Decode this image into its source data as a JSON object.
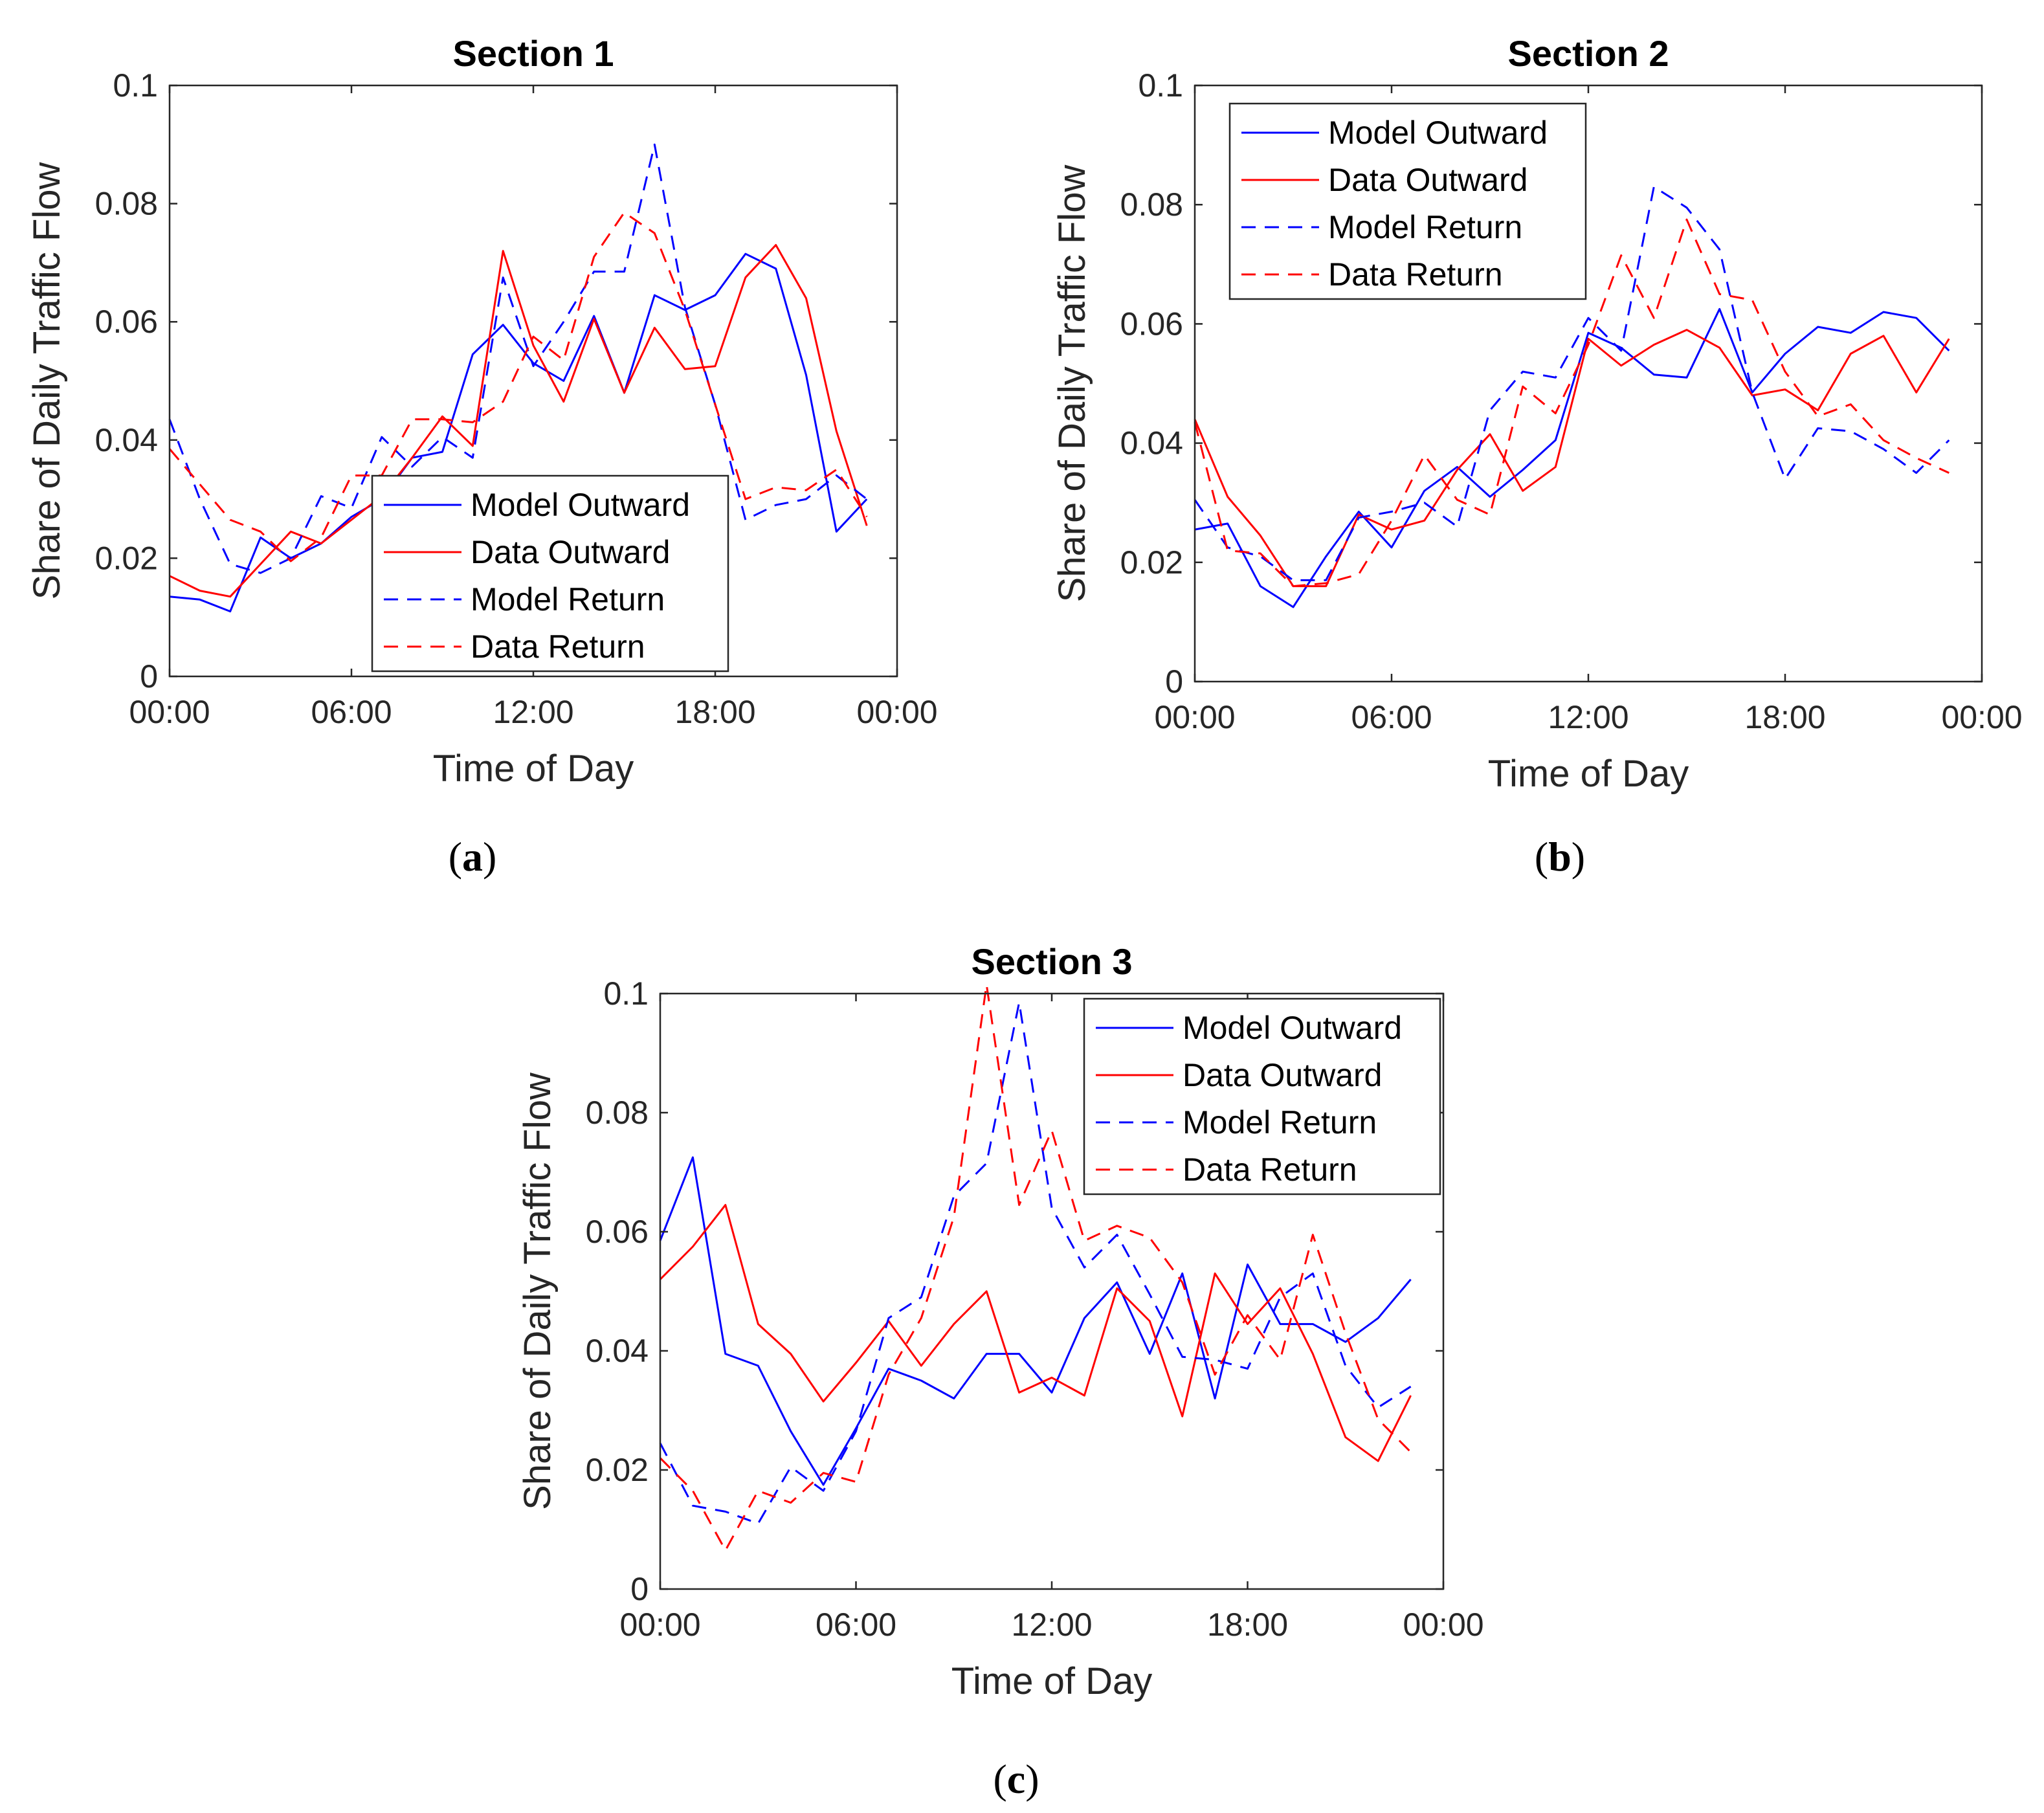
{
  "colors": {
    "model": "#0000ff",
    "data": "#ff0000",
    "axis": "#262626",
    "legend_border": "#262626"
  },
  "series_legend": [
    "Model Outward",
    "Data Outward",
    "Model Return",
    "Data Return"
  ],
  "chart_data": [
    {
      "type": "line",
      "title": "Section 1",
      "xlabel": "Time of Day",
      "ylabel": "Share of Daily Traffic Flow",
      "xlim": [
        0,
        24
      ],
      "ylim": [
        0,
        0.1
      ],
      "xticks": [
        0,
        6,
        12,
        18,
        24
      ],
      "xtick_labels": [
        "00:00",
        "06:00",
        "12:00",
        "18:00",
        "00:00"
      ],
      "yticks": [
        0,
        0.02,
        0.04,
        0.06,
        0.08,
        0.1
      ],
      "ytick_labels": [
        "0",
        "0.02",
        "0.04",
        "0.06",
        "0.08",
        "0.1"
      ],
      "legend_location": "bottom-center",
      "caption": "a",
      "x": [
        0,
        1,
        2,
        3,
        4,
        5,
        6,
        7,
        8,
        9,
        10,
        11,
        12,
        13,
        14,
        15,
        16,
        17,
        18,
        19,
        20,
        21,
        22,
        23
      ],
      "series": [
        {
          "name": "Model Outward",
          "style": "solid",
          "color": "model",
          "values": [
            0.0135,
            0.013,
            0.011,
            0.0235,
            0.02,
            0.0225,
            0.027,
            0.03,
            0.037,
            0.038,
            0.0545,
            0.0595,
            0.053,
            0.05,
            0.061,
            0.048,
            0.0645,
            0.062,
            0.0645,
            0.0715,
            0.069,
            0.051,
            0.0245,
            0.03
          ]
        },
        {
          "name": "Data Outward",
          "style": "solid",
          "color": "data",
          "values": [
            0.017,
            0.0145,
            0.0135,
            0.019,
            0.0245,
            0.0225,
            0.0265,
            0.0305,
            0.037,
            0.044,
            0.039,
            0.072,
            0.056,
            0.0465,
            0.0605,
            0.048,
            0.059,
            0.052,
            0.0525,
            0.0675,
            0.073,
            0.064,
            0.0415,
            0.0255
          ]
        },
        {
          "name": "Model Return",
          "style": "dashed",
          "color": "model",
          "values": [
            0.0435,
            0.03,
            0.019,
            0.0175,
            0.02,
            0.0305,
            0.0285,
            0.0405,
            0.0355,
            0.0405,
            0.037,
            0.0675,
            0.0525,
            0.06,
            0.0685,
            0.0685,
            0.09,
            0.0625,
            0.046,
            0.0265,
            0.029,
            0.03,
            0.034,
            0.03
          ]
        },
        {
          "name": "Data Return",
          "style": "dashed",
          "color": "data",
          "values": [
            0.0385,
            0.0325,
            0.0265,
            0.0245,
            0.0195,
            0.0235,
            0.034,
            0.034,
            0.0435,
            0.0435,
            0.043,
            0.0465,
            0.0575,
            0.0535,
            0.071,
            0.0785,
            0.075,
            0.062,
            0.046,
            0.03,
            0.032,
            0.0315,
            0.035,
            0.027
          ]
        }
      ]
    },
    {
      "type": "line",
      "title": "Section 2",
      "xlabel": "Time of Day",
      "ylabel": "Share of Daily Traffic Flow",
      "xlim": [
        0,
        24
      ],
      "ylim": [
        0,
        0.1
      ],
      "xticks": [
        0,
        6,
        12,
        18,
        24
      ],
      "xtick_labels": [
        "00:00",
        "06:00",
        "12:00",
        "18:00",
        "00:00"
      ],
      "yticks": [
        0,
        0.02,
        0.04,
        0.06,
        0.08,
        0.1
      ],
      "ytick_labels": [
        "0",
        "0.02",
        "0.04",
        "0.06",
        "0.08",
        "0.1"
      ],
      "legend_location": "top-left",
      "caption": "b",
      "x": [
        0,
        1,
        2,
        3,
        4,
        5,
        6,
        7,
        8,
        9,
        10,
        11,
        12,
        13,
        14,
        15,
        16,
        17,
        18,
        19,
        20,
        21,
        22,
        23
      ],
      "series": [
        {
          "name": "Model Outward",
          "style": "solid",
          "color": "model",
          "values": [
            0.0255,
            0.0265,
            0.016,
            0.0125,
            0.021,
            0.0285,
            0.0225,
            0.032,
            0.036,
            0.031,
            0.0355,
            0.0405,
            0.0585,
            0.056,
            0.0515,
            0.051,
            0.0625,
            0.0485,
            0.055,
            0.0595,
            0.0585,
            0.062,
            0.061,
            0.0555
          ]
        },
        {
          "name": "Data Outward",
          "style": "solid",
          "color": "data",
          "values": [
            0.044,
            0.031,
            0.0245,
            0.016,
            0.016,
            0.028,
            0.0255,
            0.027,
            0.0355,
            0.0415,
            0.032,
            0.036,
            0.0575,
            0.053,
            0.0565,
            0.059,
            0.056,
            0.048,
            0.049,
            0.0455,
            0.055,
            0.058,
            0.0485,
            0.0575
          ]
        },
        {
          "name": "Model Return",
          "style": "dashed",
          "color": "model",
          "values": [
            0.0305,
            0.0225,
            0.021,
            0.017,
            0.017,
            0.0275,
            0.0285,
            0.03,
            0.026,
            0.0455,
            0.052,
            0.051,
            0.061,
            0.0555,
            0.083,
            0.0795,
            0.0725,
            0.0485,
            0.034,
            0.0425,
            0.042,
            0.039,
            0.035,
            0.0405
          ]
        },
        {
          "name": "Data Return",
          "style": "dashed",
          "color": "data",
          "values": [
            0.0435,
            0.022,
            0.0215,
            0.016,
            0.0165,
            0.018,
            0.027,
            0.038,
            0.0305,
            0.028,
            0.0495,
            0.045,
            0.0565,
            0.0715,
            0.061,
            0.0775,
            0.065,
            0.064,
            0.052,
            0.0445,
            0.0465,
            0.0405,
            0.0375,
            0.035
          ]
        }
      ]
    },
    {
      "type": "line",
      "title": "Section 3",
      "xlabel": "Time of Day",
      "ylabel": "Share of Daily Traffic Flow",
      "xlim": [
        0,
        24
      ],
      "ylim": [
        0,
        0.1
      ],
      "xticks": [
        0,
        6,
        12,
        18,
        24
      ],
      "xtick_labels": [
        "00:00",
        "06:00",
        "12:00",
        "18:00",
        "00:00"
      ],
      "yticks": [
        0,
        0.02,
        0.04,
        0.06,
        0.08,
        0.1
      ],
      "ytick_labels": [
        "0",
        "0.02",
        "0.04",
        "0.06",
        "0.08",
        "0.1"
      ],
      "legend_location": "top-right",
      "caption": "c",
      "x": [
        0,
        1,
        2,
        3,
        4,
        5,
        6,
        7,
        8,
        9,
        10,
        11,
        12,
        13,
        14,
        15,
        16,
        17,
        18,
        19,
        20,
        21,
        22,
        23
      ],
      "series": [
        {
          "name": "Model Outward",
          "style": "solid",
          "color": "model",
          "values": [
            0.0585,
            0.0725,
            0.0395,
            0.0375,
            0.0265,
            0.0175,
            0.027,
            0.037,
            0.035,
            0.032,
            0.0395,
            0.0395,
            0.033,
            0.0455,
            0.0515,
            0.0395,
            0.053,
            0.032,
            0.0545,
            0.0445,
            0.0445,
            0.0415,
            0.0455,
            0.052
          ]
        },
        {
          "name": "Data Outward",
          "style": "solid",
          "color": "data",
          "values": [
            0.052,
            0.0575,
            0.0645,
            0.0445,
            0.0395,
            0.0315,
            0.038,
            0.045,
            0.0375,
            0.0445,
            0.05,
            0.033,
            0.0355,
            0.0325,
            0.0505,
            0.045,
            0.029,
            0.053,
            0.0445,
            0.0505,
            0.0395,
            0.0255,
            0.0215,
            0.0325
          ]
        },
        {
          "name": "Model Return",
          "style": "dashed",
          "color": "model",
          "values": [
            0.0245,
            0.014,
            0.013,
            0.011,
            0.0205,
            0.0165,
            0.0265,
            0.0455,
            0.049,
            0.066,
            0.0715,
            0.0985,
            0.064,
            0.054,
            0.0595,
            0.0495,
            0.039,
            0.0385,
            0.037,
            0.049,
            0.053,
            0.0375,
            0.0305,
            0.034
          ]
        },
        {
          "name": "Data Return",
          "style": "dashed",
          "color": "data",
          "values": [
            0.022,
            0.0165,
            0.0065,
            0.0165,
            0.0145,
            0.0195,
            0.018,
            0.036,
            0.0455,
            0.0625,
            0.1015,
            0.0645,
            0.077,
            0.0585,
            0.061,
            0.059,
            0.0515,
            0.036,
            0.046,
            0.0385,
            0.0595,
            0.043,
            0.0285,
            0.023
          ]
        }
      ]
    }
  ]
}
